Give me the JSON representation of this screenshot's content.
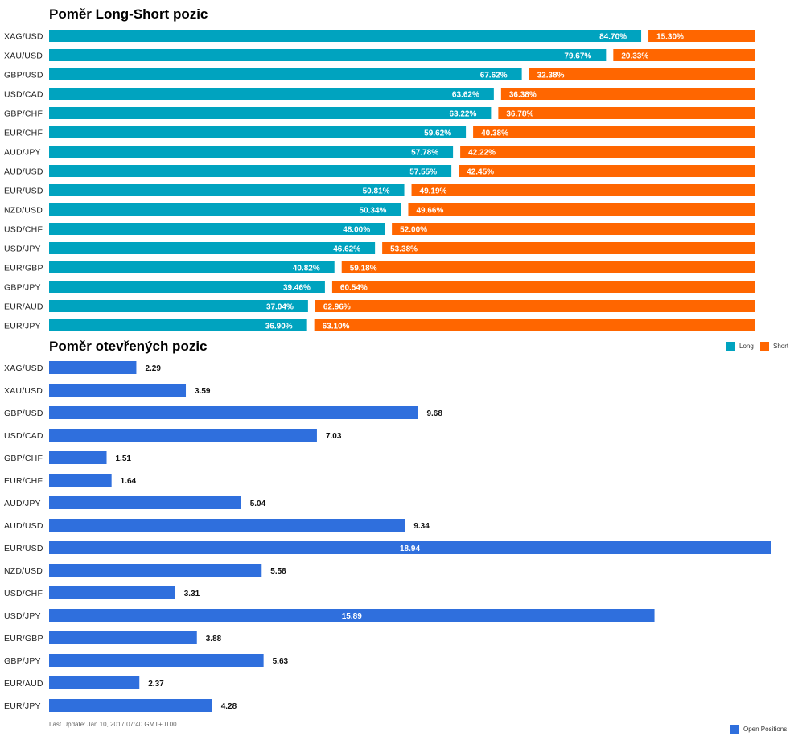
{
  "header": {
    "title_long_short": "Poměr Long-Short pozic",
    "title_open_positions": "Poměr otevřených pozic"
  },
  "footer": {
    "last_update": "Last Update: Jan 10, 2017 07:40 GMT+0100"
  },
  "colors": {
    "long": "#00a3bf",
    "short": "#ff6600",
    "open": "#2f6fdd"
  },
  "chart_data": [
    {
      "type": "bar",
      "orientation": "horizontal",
      "stacked": true,
      "title": "Poměr Long-Short pozic",
      "categories": [
        "XAG/USD",
        "XAU/USD",
        "GBP/USD",
        "USD/CAD",
        "GBP/CHF",
        "EUR/CHF",
        "AUD/JPY",
        "AUD/USD",
        "EUR/USD",
        "NZD/USD",
        "USD/CHF",
        "USD/JPY",
        "EUR/GBP",
        "GBP/JPY",
        "EUR/AUD",
        "EUR/JPY"
      ],
      "series": [
        {
          "name": "Long",
          "values": [
            84.7,
            79.67,
            67.62,
            63.62,
            63.22,
            59.62,
            57.78,
            57.55,
            50.81,
            50.34,
            48.0,
            46.62,
            40.82,
            39.46,
            37.04,
            36.9
          ]
        },
        {
          "name": "Short",
          "values": [
            15.3,
            20.33,
            32.38,
            36.38,
            36.78,
            40.38,
            42.22,
            42.45,
            49.19,
            49.66,
            52.0,
            53.38,
            59.18,
            60.54,
            62.96,
            63.1
          ]
        }
      ],
      "value_labels": {
        "long": [
          "84.70%",
          "79.67%",
          "67.62%",
          "63.62%",
          "63.22%",
          "59.62%",
          "57.78%",
          "57.55%",
          "50.81%",
          "50.34%",
          "48.00%",
          "46.62%",
          "40.82%",
          "39.46%",
          "37.04%",
          "36.90%"
        ],
        "short": [
          "15.30%",
          "20.33%",
          "32.38%",
          "36.38%",
          "36.78%",
          "40.38%",
          "42.22%",
          "42.45%",
          "49.19%",
          "49.66%",
          "52.00%",
          "53.38%",
          "59.18%",
          "60.54%",
          "62.96%",
          "63.10%"
        ]
      },
      "legend": [
        "Long",
        "Short"
      ],
      "legend_position": "bottom-right",
      "xlim": [
        0,
        100
      ],
      "grid": false
    },
    {
      "type": "bar",
      "orientation": "horizontal",
      "title": "Poměr otevřených pozic",
      "categories": [
        "XAG/USD",
        "XAU/USD",
        "GBP/USD",
        "USD/CAD",
        "GBP/CHF",
        "EUR/CHF",
        "AUD/JPY",
        "AUD/USD",
        "EUR/USD",
        "NZD/USD",
        "USD/CHF",
        "USD/JPY",
        "EUR/GBP",
        "GBP/JPY",
        "EUR/AUD",
        "EUR/JPY"
      ],
      "series": [
        {
          "name": "Open Positions",
          "values": [
            2.29,
            3.59,
            9.68,
            7.03,
            1.51,
            1.64,
            5.04,
            9.34,
            18.94,
            5.58,
            3.31,
            15.89,
            3.88,
            5.63,
            2.37,
            4.28
          ]
        }
      ],
      "value_labels": [
        "2.29",
        "3.59",
        "9.68",
        "7.03",
        "1.51",
        "1.64",
        "5.04",
        "9.34",
        "18.94",
        "5.58",
        "3.31",
        "15.89",
        "3.88",
        "5.63",
        "2.37",
        "4.28"
      ],
      "legend": [
        "Open Positions"
      ],
      "legend_position": "bottom-right",
      "xlim": [
        0,
        18.94
      ],
      "grid": false
    }
  ]
}
